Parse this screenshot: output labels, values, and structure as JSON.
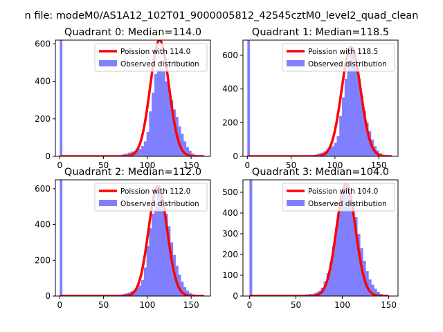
{
  "figure": {
    "suptitle": "n file: modeM0/AS1A12_102T01_9000005812_42545cztM0_level2_quad_clean"
  },
  "colors": {
    "histogram": "#8080ff",
    "poisson_line": "#ff0000",
    "axes": "#000000",
    "legend_border": "#cccccc"
  },
  "chart_data": [
    {
      "type": "bar",
      "title": "Quadrant 0: Median=114.0",
      "legend": [
        "Poission with 114.0",
        "Observed distribution"
      ],
      "legend_position": "top-right",
      "xlim": [
        -5,
        172
      ],
      "ylim": [
        0,
        620
      ],
      "xticks": [
        0,
        50,
        100,
        150
      ],
      "yticks": [
        0,
        200,
        400,
        600
      ],
      "grid": false,
      "spike": {
        "x": 0,
        "width": 3,
        "value": 620
      },
      "hist": {
        "bin_width": 3.3,
        "bins": [
          [
            66,
            5
          ],
          [
            69,
            8
          ],
          [
            72,
            12
          ],
          [
            75,
            15
          ],
          [
            78,
            20
          ],
          [
            81,
            25
          ],
          [
            84,
            28
          ],
          [
            87,
            35
          ],
          [
            90,
            40
          ],
          [
            93,
            55
          ],
          [
            96,
            80
          ],
          [
            99,
            130
          ],
          [
            102,
            240
          ],
          [
            105,
            340
          ],
          [
            108,
            440
          ],
          [
            111,
            460
          ],
          [
            114,
            470
          ],
          [
            117,
            460
          ],
          [
            120,
            400
          ],
          [
            123,
            360
          ],
          [
            126,
            300
          ],
          [
            129,
            250
          ],
          [
            132,
            210
          ],
          [
            135,
            160
          ],
          [
            138,
            120
          ],
          [
            141,
            80
          ],
          [
            144,
            50
          ],
          [
            147,
            30
          ],
          [
            150,
            15
          ],
          [
            153,
            8
          ],
          [
            156,
            3
          ]
        ]
      },
      "poisson": {
        "mean": 114.0,
        "amplitude": 620,
        "x_range": [
          0,
          165
        ]
      }
    },
    {
      "type": "bar",
      "title": "Quadrant 1: Median=118.5",
      "legend": [
        "Poission with 118.5",
        "Observed distribution"
      ],
      "legend_position": "top-right",
      "xlim": [
        -5,
        172
      ],
      "ylim": [
        0,
        690
      ],
      "xticks": [
        0,
        50,
        100,
        150
      ],
      "yticks": [
        0,
        200,
        400,
        600
      ],
      "grid": false,
      "spike": {
        "x": 0,
        "width": 3,
        "value": 690
      },
      "hist": {
        "bin_width": 3.3,
        "bins": [
          [
            72,
            5
          ],
          [
            75,
            8
          ],
          [
            78,
            12
          ],
          [
            81,
            18
          ],
          [
            84,
            22
          ],
          [
            87,
            30
          ],
          [
            90,
            40
          ],
          [
            93,
            50
          ],
          [
            96,
            60
          ],
          [
            99,
            80
          ],
          [
            102,
            120
          ],
          [
            105,
            240
          ],
          [
            108,
            350
          ],
          [
            111,
            460
          ],
          [
            114,
            560
          ],
          [
            117,
            640
          ],
          [
            120,
            630
          ],
          [
            123,
            560
          ],
          [
            126,
            460
          ],
          [
            129,
            360
          ],
          [
            132,
            270
          ],
          [
            135,
            200
          ],
          [
            138,
            150
          ],
          [
            141,
            100
          ],
          [
            144,
            60
          ],
          [
            147,
            35
          ],
          [
            150,
            18
          ],
          [
            153,
            8
          ],
          [
            156,
            3
          ]
        ]
      },
      "poisson": {
        "mean": 118.5,
        "amplitude": 650,
        "x_range": [
          0,
          165
        ]
      }
    },
    {
      "type": "bar",
      "title": "Quadrant 2: Median=112.0",
      "legend": [
        "Poission with 112.0",
        "Observed distribution"
      ],
      "legend_position": "top-right",
      "xlim": [
        -5,
        172
      ],
      "ylim": [
        0,
        650
      ],
      "xticks": [
        0,
        50,
        100,
        150
      ],
      "yticks": [
        0,
        200,
        400,
        600
      ],
      "grid": false,
      "spike": {
        "x": 0,
        "width": 3,
        "value": 650
      },
      "hist": {
        "bin_width": 3.3,
        "bins": [
          [
            66,
            5
          ],
          [
            69,
            8
          ],
          [
            72,
            12
          ],
          [
            75,
            15
          ],
          [
            78,
            20
          ],
          [
            81,
            28
          ],
          [
            84,
            35
          ],
          [
            87,
            45
          ],
          [
            90,
            60
          ],
          [
            93,
            90
          ],
          [
            96,
            160
          ],
          [
            99,
            280
          ],
          [
            102,
            380
          ],
          [
            105,
            460
          ],
          [
            108,
            520
          ],
          [
            111,
            580
          ],
          [
            114,
            560
          ],
          [
            117,
            520
          ],
          [
            120,
            460
          ],
          [
            123,
            390
          ],
          [
            126,
            300
          ],
          [
            129,
            230
          ],
          [
            132,
            170
          ],
          [
            135,
            120
          ],
          [
            138,
            80
          ],
          [
            141,
            50
          ],
          [
            144,
            30
          ],
          [
            147,
            18
          ],
          [
            150,
            10
          ],
          [
            153,
            5
          ],
          [
            156,
            2
          ]
        ]
      },
      "poisson": {
        "mean": 112.0,
        "amplitude": 615,
        "x_range": [
          0,
          165
        ]
      }
    },
    {
      "type": "bar",
      "title": "Quadrant 3: Median=104.0",
      "legend": [
        "Poission with 104.0",
        "Observed distribution"
      ],
      "legend_position": "top-right",
      "xlim": [
        -7,
        160
      ],
      "ylim": [
        0,
        560
      ],
      "xticks": [
        0,
        50,
        100,
        150
      ],
      "yticks": [
        0,
        100,
        200,
        300,
        400,
        500
      ],
      "grid": false,
      "spike": {
        "x": 0,
        "width": 3,
        "value": 560
      },
      "hist": {
        "bin_width": 3.3,
        "bins": [
          [
            52,
            4
          ],
          [
            56,
            6
          ],
          [
            60,
            8
          ],
          [
            64,
            10
          ],
          [
            68,
            12
          ],
          [
            71,
            18
          ],
          [
            74,
            25
          ],
          [
            77,
            40
          ],
          [
            80,
            70
          ],
          [
            83,
            110
          ],
          [
            86,
            160
          ],
          [
            89,
            240
          ],
          [
            92,
            330
          ],
          [
            95,
            420
          ],
          [
            98,
            490
          ],
          [
            101,
            530
          ],
          [
            104,
            540
          ],
          [
            107,
            510
          ],
          [
            110,
            450
          ],
          [
            113,
            380
          ],
          [
            116,
            300
          ],
          [
            119,
            230
          ],
          [
            122,
            170
          ],
          [
            125,
            120
          ],
          [
            128,
            80
          ],
          [
            131,
            55
          ],
          [
            134,
            35
          ],
          [
            137,
            20
          ],
          [
            140,
            10
          ],
          [
            143,
            5
          ],
          [
            146,
            2
          ]
        ]
      },
      "poisson": {
        "mean": 104.0,
        "amplitude": 540,
        "x_range": [
          0,
          150
        ]
      }
    }
  ]
}
